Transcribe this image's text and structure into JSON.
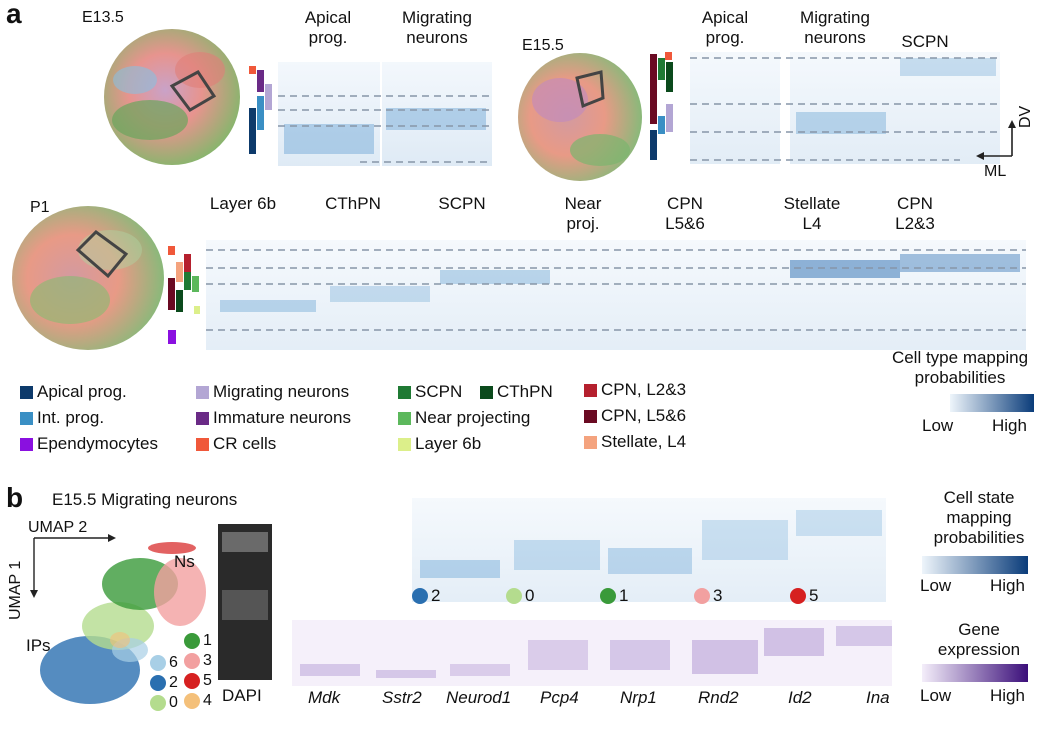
{
  "panel_a": {
    "letter": "a",
    "stages": {
      "e13": "E13.5",
      "e15": "E15.5",
      "p1": "P1"
    },
    "e13_cols": [
      "Apical\nprog.",
      "Migrating\nneurons"
    ],
    "e15_cols": [
      "Apical\nprog.",
      "Migrating\nneurons",
      "SCPN"
    ],
    "p1_cols": [
      "Layer 6b",
      "CThPN",
      "SCPN",
      "Near\nproj.",
      "CPN\nL5&6",
      "Stellate\nL4",
      "CPN\nL2&3"
    ],
    "axes": {
      "dv": "DV",
      "ml": "ML"
    },
    "legend": [
      {
        "label": "Apical prog.",
        "color": "#0d3a6b"
      },
      {
        "label": "Int. prog.",
        "color": "#3a8fc4"
      },
      {
        "label": "Ependymocytes",
        "color": "#8a10e0"
      },
      {
        "label": "Migrating neurons",
        "color": "#b3a6d4"
      },
      {
        "label": "Immature neurons",
        "color": "#6a2a86"
      },
      {
        "label": "CR cells",
        "color": "#f0583a"
      },
      {
        "label": "SCPN",
        "color": "#1f7a34"
      },
      {
        "label": "CThPN",
        "color": "#0b4a1c"
      },
      {
        "label": "Near projecting",
        "color": "#5cb85c"
      },
      {
        "label": "Layer 6b",
        "color": "#dcef8a"
      },
      {
        "label": "CPN, L2&3",
        "color": "#b5202e"
      },
      {
        "label": "CPN, L5&6",
        "color": "#6a0a22"
      },
      {
        "label": "Stellate, L4",
        "color": "#f4a37e"
      }
    ],
    "colorbar": {
      "title": "Cell type mapping\nprobabilities",
      "low": "Low",
      "high": "High",
      "from": "#eef5fb",
      "to": "#0a3c7a"
    }
  },
  "panel_b": {
    "letter": "b",
    "title": "E15.5 Migrating neurons",
    "umap": {
      "x": "UMAP 2",
      "y": "UMAP 1",
      "ns": "Ns",
      "ips": "IPs",
      "dapi": "DAPI"
    },
    "clusters": [
      {
        "label": "6",
        "color": "#a8cfe6"
      },
      {
        "label": "2",
        "color": "#2a6fb0"
      },
      {
        "label": "0",
        "color": "#b4dc8e"
      },
      {
        "label": "1",
        "color": "#3a9a3a"
      },
      {
        "label": "3",
        "color": "#f2a0a0"
      },
      {
        "label": "5",
        "color": "#d62020"
      },
      {
        "label": "4",
        "color": "#f4c07a"
      }
    ],
    "state_dots": [
      {
        "label": "2",
        "color": "#2a6fb0"
      },
      {
        "label": "0",
        "color": "#b4dc8e"
      },
      {
        "label": "1",
        "color": "#3a9a3a"
      },
      {
        "label": "3",
        "color": "#f2a0a0"
      },
      {
        "label": "5",
        "color": "#d62020"
      }
    ],
    "genes": [
      "Mdk",
      "Sstr2",
      "Neurod1",
      "Pcp4",
      "Nrp1",
      "Rnd2",
      "Id2",
      "Ina"
    ],
    "state_colorbar": {
      "title": "Cell state\nmapping\nprobabilities",
      "low": "Low",
      "high": "High",
      "from": "#eef5fb",
      "to": "#0a3c7a"
    },
    "gene_colorbar": {
      "title": "Gene\nexpression",
      "low": "Low",
      "high": "High",
      "from": "#f4eefa",
      "to": "#3b0f7a"
    }
  }
}
